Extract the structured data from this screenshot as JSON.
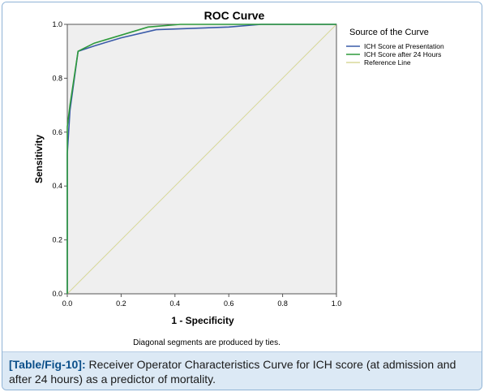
{
  "chart_data": {
    "type": "line",
    "title": "ROC Curve",
    "xlabel": "1 - Specificity",
    "ylabel": "Sensitivity",
    "xlim": [
      0.0,
      1.0
    ],
    "ylim": [
      0.0,
      1.0
    ],
    "xticks": [
      "0.0",
      "0.2",
      "0.4",
      "0.6",
      "0.8",
      "1.0"
    ],
    "yticks": [
      "0.0",
      "0.2",
      "0.4",
      "0.6",
      "0.8",
      "1.0"
    ],
    "grid": false,
    "legend_title": "Source of the Curve",
    "legend_position": "right",
    "footnote": "Diagonal segments are produced by ties.",
    "series": [
      {
        "name": "ICH Score at Presentation",
        "color": "#3a5ba8",
        "points": [
          [
            0.0,
            0.0
          ],
          [
            0.0,
            0.52
          ],
          [
            0.01,
            0.68
          ],
          [
            0.04,
            0.9
          ],
          [
            0.1,
            0.92
          ],
          [
            0.2,
            0.95
          ],
          [
            0.33,
            0.98
          ],
          [
            0.6,
            0.99
          ],
          [
            0.72,
            1.0
          ],
          [
            1.0,
            1.0
          ]
        ]
      },
      {
        "name": "ICH Score after 24 Hours",
        "color": "#2e9a3c",
        "points": [
          [
            0.0,
            0.0
          ],
          [
            0.0,
            0.62
          ],
          [
            0.01,
            0.7
          ],
          [
            0.04,
            0.9
          ],
          [
            0.1,
            0.93
          ],
          [
            0.2,
            0.96
          ],
          [
            0.3,
            0.99
          ],
          [
            0.42,
            1.0
          ],
          [
            1.0,
            1.0
          ]
        ]
      },
      {
        "name": "Reference Line",
        "color": "#d8d89a",
        "points": [
          [
            0.0,
            0.0
          ],
          [
            1.0,
            1.0
          ]
        ]
      }
    ]
  },
  "caption": {
    "tag": "[Table/Fig-10]:",
    "text": "Receiver Operator Characteristics Curve for ICH score (at admission and after 24 hours) as a predictor of mortality."
  },
  "colors": {
    "plot_background": "#efefef",
    "caption_tag": "#0b4f8a"
  }
}
